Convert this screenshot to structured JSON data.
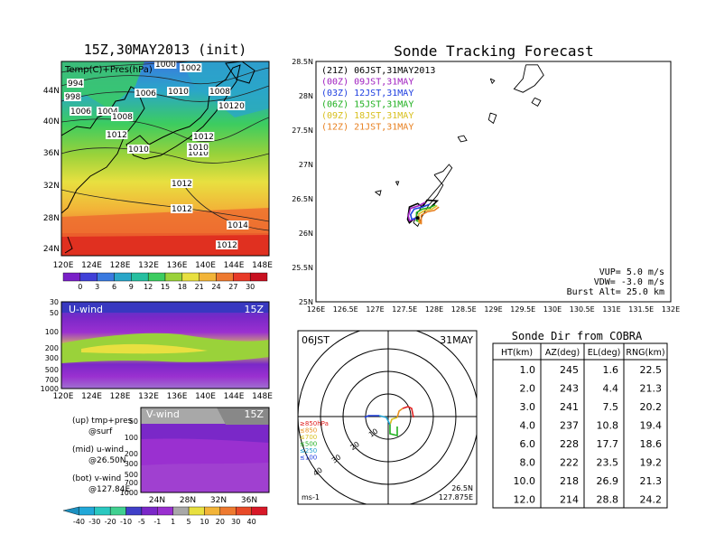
{
  "left_panel": {
    "title": "15Z,30MAY2013 (init)",
    "map_label": "Temp(C)+Pres(hPa)",
    "y_ticks": [
      "44N",
      "40N",
      "36N",
      "32N",
      "28N",
      "24N"
    ],
    "x_ticks": [
      "120E",
      "124E",
      "128E",
      "132E",
      "136E",
      "140E",
      "144E",
      "148E"
    ],
    "isobars": [
      "1000",
      "1002",
      "994",
      "998",
      "1004",
      "1006",
      "1006",
      "1008",
      "1008",
      "1010",
      "1010",
      "1010",
      "1010",
      "1012",
      "1012",
      "1012",
      "1012",
      "1012",
      "1014",
      "1012",
      "1010"
    ],
    "temp_colorbar": [
      "0",
      "3",
      "6",
      "9",
      "12",
      "15",
      "18",
      "21",
      "24",
      "27",
      "30"
    ],
    "temp_colors": [
      "#7a20c8",
      "#4040d8",
      "#3a7ae0",
      "#2aa6c8",
      "#26bfa0",
      "#3ccc60",
      "#9ad23a",
      "#e8e040",
      "#f2b438",
      "#ee7a30",
      "#e83a28",
      "#c81020"
    ]
  },
  "u_wind": {
    "label": "U-wind",
    "time": "15Z",
    "y_ticks": [
      "30",
      "50",
      "100",
      "200",
      "300",
      "500",
      "700",
      "1000"
    ],
    "x_ticks": [
      "120E",
      "124E",
      "128E",
      "132E",
      "136E",
      "140E",
      "144E",
      "148E"
    ]
  },
  "v_wind": {
    "label": "V-wind",
    "time": "15Z",
    "y_ticks": [
      "50",
      "100",
      "200",
      "300",
      "500",
      "700",
      "1000"
    ],
    "x_ticks": [
      "24N",
      "28N",
      "32N",
      "36N"
    ]
  },
  "legend_notes": {
    "up": "(up) tmp+pres",
    "up2": "@surf",
    "mid": "(mid) u-wind",
    "mid2": "@26.50N",
    "bot": "(bot) v-wind",
    "bot2": "@127.84E"
  },
  "wind_colorbar": [
    "-40",
    "-30",
    "-20",
    "-10",
    "-5",
    "-1",
    "1",
    "5",
    "10",
    "20",
    "30",
    "40"
  ],
  "wind_colors": [
    "#22a8d8",
    "#2ac8c0",
    "#40d090",
    "#4040c8",
    "#7a28c8",
    "#9a30d0",
    "#a8a8a8",
    "#e8e040",
    "#f2b438",
    "#ee7a30",
    "#e84a28",
    "#d81828"
  ],
  "sonde_track": {
    "title": "Sonde Tracking Forecast",
    "legend": [
      {
        "text": "(21Z) 06JST,31MAY2013",
        "color": "#000000"
      },
      {
        "text": "(00Z) 09JST,31MAY",
        "color": "#a020c0"
      },
      {
        "text": "(03Z) 12JST,31MAY",
        "color": "#2040e0"
      },
      {
        "text": "(06Z) 15JST,31MAY",
        "color": "#20b020"
      },
      {
        "text": "(09Z) 18JST,31MAY",
        "color": "#d8c020"
      },
      {
        "text": "(12Z) 21JST,31MAY",
        "color": "#e88020"
      }
    ],
    "y_ticks": [
      "28.5N",
      "28N",
      "27.5N",
      "27N",
      "26.5N",
      "26N",
      "25.5N",
      "25N"
    ],
    "x_ticks": [
      "126E",
      "126.5E",
      "127E",
      "127.5E",
      "128E",
      "128.5E",
      "129E",
      "129.5E",
      "130E",
      "130.5E",
      "131E",
      "131.5E",
      "132E"
    ],
    "vup": "VUP= 5.0 m/s",
    "vdw": "VDW= -3.0 m/s",
    "burst": "Burst Alt= 25.0 km"
  },
  "polar": {
    "time": "06JST",
    "date": "31MAY",
    "ring_labels": [
      "10",
      "20",
      "30",
      "40"
    ],
    "level_labels": [
      {
        "text": "≥850hPa",
        "color": "#e02020"
      },
      {
        "text": "≤850",
        "color": "#e89020"
      },
      {
        "text": "≤700",
        "color": "#d8c020"
      },
      {
        "text": "≤500",
        "color": "#20b020"
      },
      {
        "text": "≤250",
        "color": "#20a0d0"
      },
      {
        "text": "≤100",
        "color": "#2040e0"
      }
    ],
    "units": "ms-1",
    "lat": "26.5N",
    "lon": "127.875E"
  },
  "table": {
    "title": "Sonde Dir from COBRA",
    "headers": [
      "HT(km)",
      "AZ(deg)",
      "EL(deg)",
      "RNG(km)"
    ],
    "rows": [
      [
        "1.0",
        "245",
        "1.6",
        "22.5"
      ],
      [
        "2.0",
        "243",
        "4.4",
        "21.3"
      ],
      [
        "3.0",
        "241",
        "7.5",
        "20.2"
      ],
      [
        "4.0",
        "237",
        "10.8",
        "19.4"
      ],
      [
        "6.0",
        "228",
        "17.7",
        "18.6"
      ],
      [
        "8.0",
        "222",
        "23.5",
        "19.2"
      ],
      [
        "10.0",
        "218",
        "26.9",
        "21.3"
      ],
      [
        "12.0",
        "214",
        "28.8",
        "24.2"
      ]
    ]
  },
  "chart_data": [
    {
      "type": "heatmap",
      "title": "15Z,30MAY2013 (init)",
      "subtitle": "Temp(C)+Pres(hPa)",
      "x_ticks": [
        "120E",
        "124E",
        "128E",
        "132E",
        "136E",
        "140E",
        "144E",
        "148E"
      ],
      "y_ticks": [
        "24N",
        "28N",
        "32N",
        "36N",
        "40N",
        "44N"
      ],
      "colorbar": [
        0,
        3,
        6,
        9,
        12,
        15,
        18,
        21,
        24,
        27,
        30
      ]
    },
    {
      "type": "heatmap",
      "title": "U-wind",
      "x_ticks": [
        "120E",
        "124E",
        "128E",
        "132E",
        "136E",
        "140E",
        "144E",
        "148E"
      ],
      "y_ticks": [
        30,
        50,
        100,
        200,
        300,
        500,
        700,
        1000
      ],
      "colorbar": [
        -40,
        -30,
        -20,
        -10,
        -5,
        -1,
        1,
        5,
        10,
        20,
        30,
        40
      ]
    },
    {
      "type": "heatmap",
      "title": "V-wind",
      "x_ticks": [
        "24N",
        "28N",
        "32N",
        "36N"
      ],
      "y_ticks": [
        50,
        100,
        200,
        300,
        500,
        700,
        1000
      ]
    },
    {
      "type": "line",
      "title": "Sonde Tracking Forecast",
      "xlim": [
        126,
        132
      ],
      "ylim": [
        25,
        28.5
      ],
      "series": [
        {
          "name": "(21Z) 06JST,31MAY2013",
          "x": [
            127.72,
            127.68,
            127.58,
            127.55,
            127.58,
            127.72,
            127.8,
            127.88,
            128.05,
            127.92
          ],
          "y": [
            26.25,
            26.22,
            26.15,
            26.2,
            26.38,
            26.43,
            26.38,
            26.48,
            26.47,
            26.36
          ]
        },
        {
          "name": "(00Z) 09JST,31MAY",
          "x": [
            127.72,
            127.66,
            127.58,
            127.56,
            127.6,
            127.74,
            127.85
          ],
          "y": [
            26.25,
            26.2,
            26.18,
            26.25,
            26.36,
            26.4,
            26.45
          ]
        },
        {
          "name": "(03Z) 12JST,31MAY",
          "x": [
            127.72,
            127.7,
            127.62,
            127.6,
            127.66,
            127.8,
            127.92
          ],
          "y": [
            26.25,
            26.22,
            26.2,
            26.27,
            26.35,
            26.38,
            26.42
          ]
        },
        {
          "name": "(06Z) 15JST,31MAY",
          "x": [
            127.72,
            127.74,
            127.7,
            127.7,
            127.8,
            127.92,
            128.02
          ],
          "y": [
            26.25,
            26.17,
            26.18,
            26.3,
            26.35,
            26.37,
            26.41
          ]
        },
        {
          "name": "(09Z) 18JST,31MAY",
          "x": [
            127.72,
            127.76,
            127.74,
            127.74,
            127.84,
            127.96,
            128.05
          ],
          "y": [
            26.25,
            26.15,
            26.16,
            26.28,
            26.33,
            26.35,
            26.4
          ]
        },
        {
          "name": "(12Z) 21JST,31MAY",
          "x": [
            127.72,
            127.78,
            127.78,
            127.78,
            127.88,
            128.0,
            128.08
          ],
          "y": [
            26.25,
            26.13,
            26.14,
            26.26,
            26.31,
            26.33,
            26.38
          ]
        }
      ]
    },
    {
      "type": "table",
      "title": "Sonde Dir from COBRA",
      "columns": [
        "HT(km)",
        "AZ(deg)",
        "EL(deg)",
        "RNG(km)"
      ],
      "rows": [
        [
          1.0,
          245,
          1.6,
          22.5
        ],
        [
          2.0,
          243,
          4.4,
          21.3
        ],
        [
          3.0,
          241,
          7.5,
          20.2
        ],
        [
          4.0,
          237,
          10.8,
          19.4
        ],
        [
          6.0,
          228,
          17.7,
          18.6
        ],
        [
          8.0,
          222,
          23.5,
          19.2
        ],
        [
          10.0,
          218,
          26.9,
          21.3
        ],
        [
          12.0,
          214,
          28.8,
          24.2
        ]
      ]
    }
  ]
}
